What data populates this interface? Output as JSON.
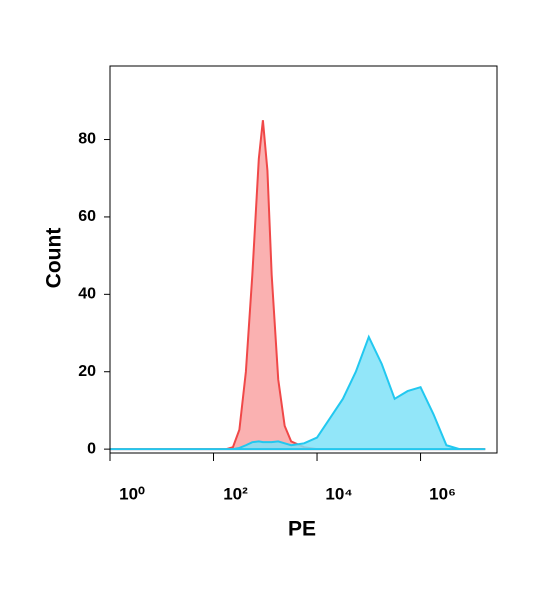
{
  "chart_data": {
    "type": "area",
    "x_label": "PE",
    "y_label": "Count",
    "x": [
      1,
      1.78,
      3.16,
      5.62,
      10,
      17.8,
      31.6,
      56.2,
      100,
      178,
      237,
      316,
      422,
      562,
      750,
      900,
      1100,
      1330,
      1780,
      2370,
      3160,
      5620,
      10000,
      17800,
      31600,
      56200,
      100000,
      178000,
      316000,
      562000,
      1000000,
      1780000,
      3160000,
      5620000,
      10000000,
      17800000
    ],
    "series": [
      {
        "color": "#f04848",
        "fill": "#f9a3a3",
        "values": [
          0,
          0,
          0,
          0,
          0,
          0,
          0,
          0,
          0,
          0,
          0.5,
          5,
          20,
          45,
          75,
          85,
          72,
          45,
          18,
          6,
          2,
          0.5,
          0,
          0,
          0,
          0,
          0,
          0,
          0,
          0,
          0,
          0,
          0,
          0,
          0,
          0
        ]
      },
      {
        "color": "#22c8f0",
        "fill": "#7fe2f8",
        "values": [
          0,
          0,
          0,
          0,
          0,
          0,
          0,
          0,
          0,
          0,
          0,
          0.3,
          1,
          1.8,
          2,
          1.8,
          1.8,
          1.8,
          2,
          1.5,
          1,
          1.5,
          3,
          8,
          13,
          20,
          29,
          22,
          13,
          15,
          16,
          9,
          1,
          0,
          0,
          0
        ]
      }
    ],
    "xscale": "log",
    "xlim": [
      1,
      30000000
    ],
    "xticks": [
      {
        "value": 1,
        "label": "10⁰"
      },
      {
        "value": 100,
        "label": "10²"
      },
      {
        "value": 10000,
        "label": "10⁴"
      },
      {
        "value": 1000000,
        "label": "10⁶"
      }
    ],
    "ylim": [
      -1,
      99
    ],
    "yticks": [
      0,
      20,
      40,
      60,
      80
    ]
  }
}
